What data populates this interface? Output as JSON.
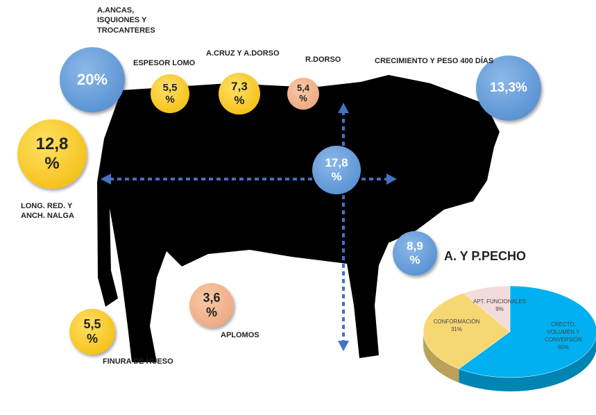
{
  "bubbles": [
    {
      "text": "20%"
    },
    {
      "text": "5,5\n%"
    },
    {
      "text": "7,3\n%"
    },
    {
      "text": "5,4\n%"
    },
    {
      "text": "13,3%"
    },
    {
      "text": "12,8\n%"
    },
    {
      "text": "17,8\n%"
    },
    {
      "text": "8,9\n%"
    },
    {
      "text": "3,6\n%"
    },
    {
      "text": "5,5\n%"
    }
  ],
  "labels": [
    {
      "text": "A.ANCAS,\nISQUIONES Y\nTROCANTERES"
    },
    {
      "text": "ESPESOR LOMO"
    },
    {
      "text": "A.CRUZ Y A.DORSO"
    },
    {
      "text": "R.DORSO"
    },
    {
      "text": "CRECIMIENTO Y PESO 400 DÍAS"
    },
    {
      "text": "LONG. RED. Y\nANCH. NALGA"
    },
    {
      "text": "A. Y P.PECHO"
    },
    {
      "text": "APLOMOS"
    },
    {
      "text": "FINURA DE HUESO"
    }
  ],
  "chart_data": {
    "type": "pie",
    "categories": [
      "CRECTO,\nVOLUMEN Y\nCONVERSIÓN",
      "CONFORMACIÓN",
      "APT. FUNCIONALES"
    ],
    "values": [
      60,
      31,
      9
    ],
    "value_labels": [
      "60%",
      "31%",
      "9%"
    ],
    "colors": [
      "#00b0f0",
      "#f7d774",
      "#f2dcdb"
    ]
  }
}
